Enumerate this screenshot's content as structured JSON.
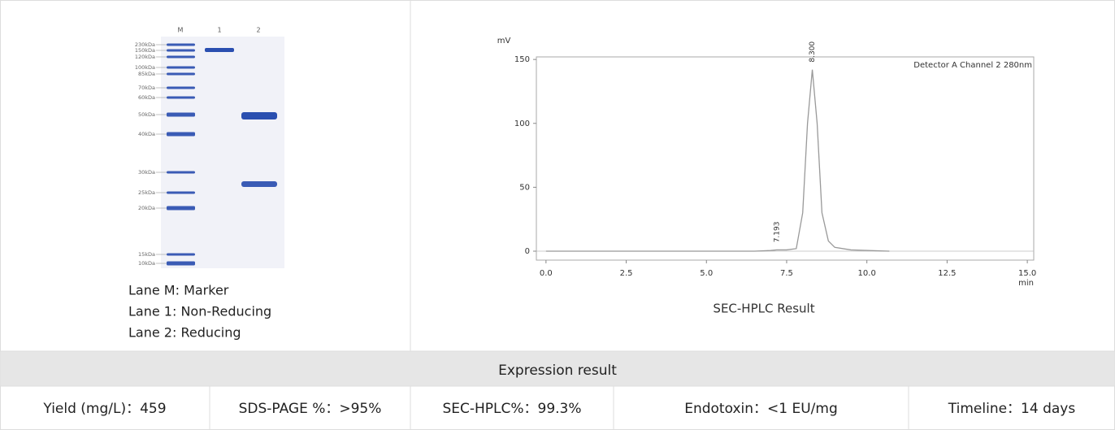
{
  "gel": {
    "lanes": [
      "M",
      "1",
      "2"
    ],
    "markers": [
      "230kDa",
      "150kDa",
      "120kDa",
      "100kDa",
      "85kDa",
      "70kDa",
      "60kDa",
      "50kDa",
      "40kDa",
      "30kDa",
      "25kDa",
      "20kDa",
      "15kDa",
      "10kDa"
    ],
    "caption": [
      "Lane M: Marker",
      "Lane 1: Non-Reducing",
      "Lane 2: Reducing"
    ]
  },
  "chromatogram": {
    "type": "line",
    "title": "SEC-HPLC Result",
    "y_label": "mV",
    "x_unit": "min",
    "annotation": "Detector A Channel 2 280nm",
    "x": [
      0,
      6.5,
      7.0,
      7.193,
      7.5,
      7.8,
      8.0,
      8.15,
      8.3,
      8.45,
      8.6,
      8.8,
      9.0,
      9.5,
      10.7
    ],
    "values": [
      0,
      0,
      0.5,
      1,
      1,
      2,
      30,
      100,
      142,
      100,
      30,
      8,
      3,
      1,
      0
    ],
    "color": "#999999",
    "peaks": [
      {
        "value": 7.193,
        "label": "7.193"
      },
      {
        "value": 8.3,
        "label": "8.300"
      }
    ],
    "xlim": [
      -0.3,
      15.2
    ],
    "ylim": [
      -7,
      152
    ],
    "xticks": [
      {
        "value": 0,
        "label": "0.0"
      },
      2.5,
      {
        "value": 5,
        "label": "5.0"
      },
      7.5,
      {
        "value": 10,
        "label": "10.0"
      },
      12.5,
      {
        "value": 15,
        "label": "15.0"
      }
    ],
    "yticks": [
      0,
      50,
      100,
      150
    ]
  },
  "table": {
    "header": "Expression result",
    "cells": [
      "Yield (mg/L)：459",
      "SDS-PAGE %：>95%",
      "SEC-HPLC%：99.3%",
      "Endotoxin：<1 EU/mg",
      "Timeline：14 days"
    ]
  }
}
